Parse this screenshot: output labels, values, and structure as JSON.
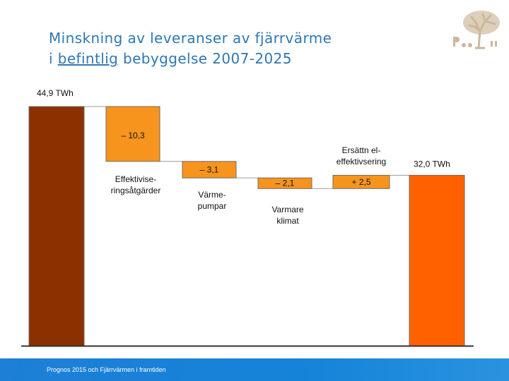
{
  "slide": {
    "title_line1": "Minskning av leveranser av fjärrvärme",
    "title_line2_prefix": "i ",
    "title_line2_underlined": "befintlig",
    "title_line2_suffix": " bebyggelse 2007-2025",
    "footer": "Prognos 2015 och Fjärrvärmen i framtiden"
  },
  "chart_data": {
    "type": "waterfall",
    "unit": "TWh",
    "ylim": [
      0,
      44.9
    ],
    "bars": [
      {
        "kind": "total",
        "start": 0,
        "end": 44.9,
        "value_label": "44,9 TWh",
        "category": "",
        "color": "#8b3100"
      },
      {
        "kind": "delta",
        "start": 44.9,
        "end": 34.6,
        "value_label": "– 10,3",
        "category": "Effektivise-\nringsåtgärder",
        "color": "#f7941d"
      },
      {
        "kind": "delta",
        "start": 34.6,
        "end": 31.5,
        "value_label": "– 3,1",
        "category": "Värme-\npumpar",
        "color": "#f7941d"
      },
      {
        "kind": "delta",
        "start": 31.5,
        "end": 29.5,
        "value_label": "– 2,1",
        "category": "Varmare\nklimat",
        "color": "#f7941d"
      },
      {
        "kind": "delta",
        "start": 29.5,
        "end": 32.0,
        "value_label": "+ 2,5",
        "category": "Ersättn el-\neffektivsering",
        "color": "#f7941d"
      },
      {
        "kind": "total",
        "start": 0,
        "end": 32.0,
        "value_label": "32,0 TWh",
        "category": "",
        "color": "#ff6100"
      }
    ],
    "colors": {
      "bar_border": "#6b6b6b",
      "connector": "#9a9a9a",
      "axis": "#333333"
    },
    "grid": false,
    "legend": "none"
  }
}
